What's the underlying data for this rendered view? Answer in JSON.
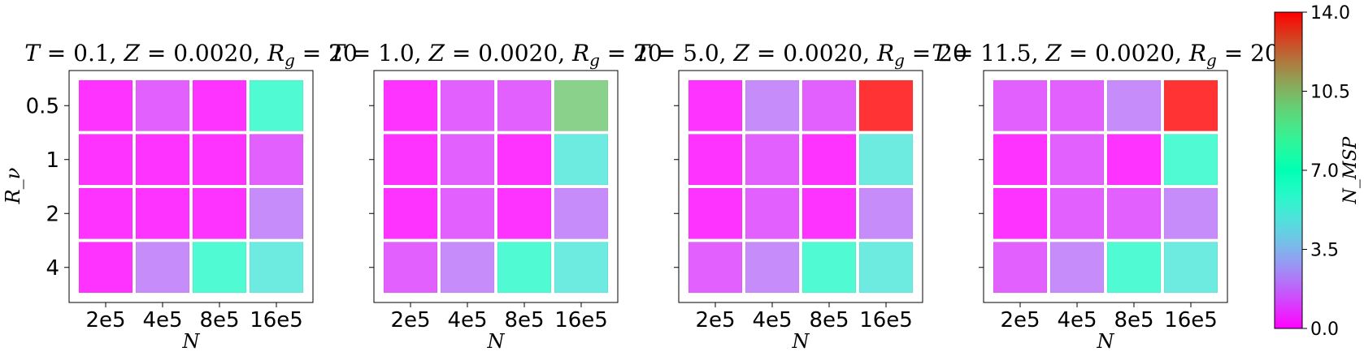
{
  "chart_data": {
    "type": "heatmap",
    "colormap": "rainbow",
    "vmin": 0.0,
    "vmax": 14.0,
    "x_categories": [
      "2e5",
      "4e5",
      "8e5",
      "16e5"
    ],
    "y_categories": [
      "0.5",
      "1",
      "2",
      "4"
    ],
    "xlabel": "N",
    "ylabel": "R_ν",
    "colorbar": {
      "label": "N_MSP",
      "ticks": [
        "0.0",
        "3.5",
        "7.0",
        "10.5",
        "14.0"
      ],
      "tick_values": [
        0.0,
        3.5,
        7.0,
        10.5,
        14.0
      ]
    },
    "panels": [
      {
        "title": "T = 0.1, Z = 0.0020, R_g = 20",
        "title_parts": {
          "T": "0.1",
          "Z": "0.0020",
          "Rg": "20"
        },
        "values": [
          [
            0,
            1,
            0,
            6
          ],
          [
            0,
            0,
            0,
            1
          ],
          [
            0,
            0,
            0,
            2
          ],
          [
            0,
            2,
            6,
            5
          ]
        ]
      },
      {
        "title": "T = 1.0, Z = 0.0020, R_g = 20",
        "title_parts": {
          "T": "1.0",
          "Z": "0.0020",
          "Rg": "20"
        },
        "values": [
          [
            0,
            1,
            1,
            10
          ],
          [
            0,
            1,
            0,
            5
          ],
          [
            0,
            1,
            0,
            2
          ],
          [
            1,
            2,
            6,
            5
          ]
        ]
      },
      {
        "title": "T = 5.0, Z = 0.0020, R_g = 20",
        "title_parts": {
          "T": "5.0",
          "Z": "0.0020",
          "Rg": "20"
        },
        "values": [
          [
            0,
            2,
            1,
            14
          ],
          [
            0,
            1,
            0,
            5
          ],
          [
            0,
            1,
            0,
            2
          ],
          [
            1,
            2,
            6,
            5
          ]
        ]
      },
      {
        "title": "T = 11.5, Z = 0.0020, R_g = 20",
        "title_parts": {
          "T": "11.5",
          "Z": "0.0020",
          "Rg": "20"
        },
        "values": [
          [
            1,
            1,
            2,
            14
          ],
          [
            0,
            1,
            0,
            6
          ],
          [
            0,
            1,
            1,
            2
          ],
          [
            1,
            2,
            6,
            5
          ]
        ]
      }
    ]
  }
}
